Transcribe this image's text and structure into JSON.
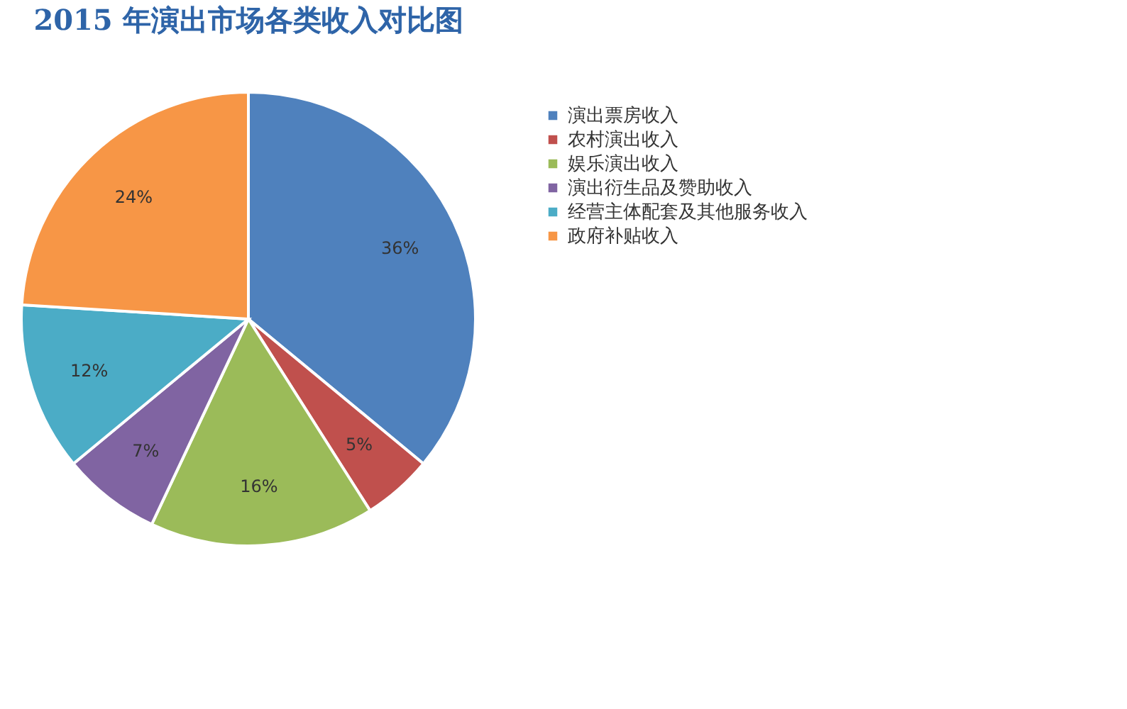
{
  "chart_data": {
    "type": "pie",
    "title": "2015 年演出市场各类收入对比图",
    "categories": [
      "演出票房收入",
      "农村演出收入",
      "娱乐演出收入",
      "演出衍生品及赞助收入",
      "经营主体配套及其他服务收入",
      "政府补贴收入"
    ],
    "values": [
      36,
      5,
      16,
      7,
      12,
      24
    ],
    "value_labels": [
      "36%",
      "5%",
      "16%",
      "7%",
      "12%",
      "24%"
    ],
    "colors": [
      "#4f81bd",
      "#c0504d",
      "#9bbb59",
      "#8064a2",
      "#4bacc6",
      "#f79646"
    ],
    "legend": "right"
  }
}
